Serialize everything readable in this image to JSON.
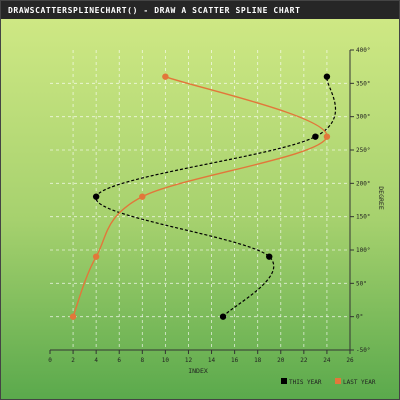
{
  "chart_data": {
    "type": "scatter",
    "title": "DRAWSCATTERSPLINECHART() - DRAW A SCATTER SPLINE CHART",
    "xlabel": "INDEX",
    "ylabel": "DEGREE",
    "xlim": [
      0,
      26
    ],
    "ylim": [
      -50,
      400
    ],
    "x_ticks": [
      "0",
      "2",
      "4",
      "6",
      "8",
      "10",
      "12",
      "14",
      "16",
      "18",
      "20",
      "22",
      "24",
      "26"
    ],
    "y_ticks": [
      "-50°",
      "0°",
      "50°",
      "100°",
      "150°",
      "200°",
      "250°",
      "300°",
      "350°",
      "400°"
    ],
    "grid": true,
    "legend_position": "bottom-right",
    "series": [
      {
        "name": "THIS YEAR",
        "color": "#000000",
        "line_style": "dashed",
        "points": [
          {
            "x": 15,
            "y": 0
          },
          {
            "x": 19,
            "y": 90
          },
          {
            "x": 4,
            "y": 180
          },
          {
            "x": 23,
            "y": 270
          },
          {
            "x": 24,
            "y": 360
          }
        ]
      },
      {
        "name": "LAST YEAR",
        "color": "#e2773a",
        "line_style": "solid",
        "points": [
          {
            "x": 2,
            "y": 0
          },
          {
            "x": 4,
            "y": 90
          },
          {
            "x": 8,
            "y": 180
          },
          {
            "x": 24,
            "y": 270
          },
          {
            "x": 10,
            "y": 360
          }
        ]
      }
    ]
  }
}
